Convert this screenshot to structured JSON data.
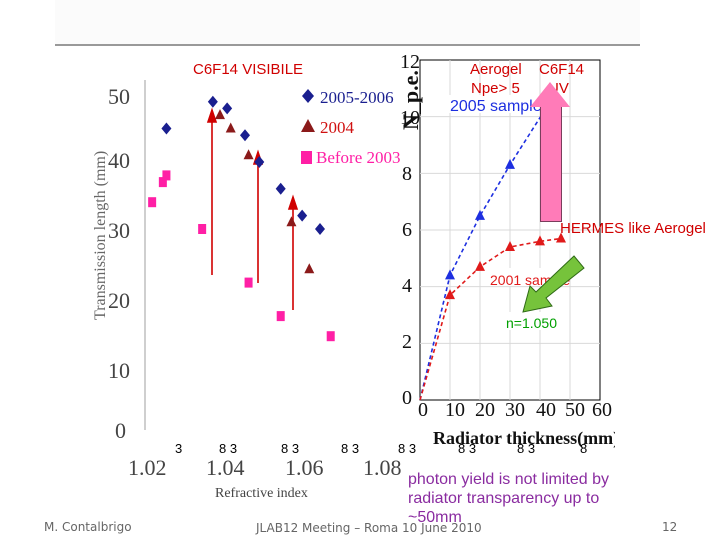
{
  "header": {
    "visible_title": "C6F14  VISIBILE",
    "aerogel_title": "Aerogel",
    "npe_label": "Npe> 5",
    "uv_title": "C6F14",
    "uv_label": "UV",
    "sample_2005": "2005 sample",
    "hermes_label": "HERMES like Aerogel"
  },
  "chart_data": [
    {
      "type": "scatter",
      "title": "",
      "xlabel": "Refractive index",
      "ylabel": "Transmission length (mm)",
      "xlim": [
        1.02,
        1.09
      ],
      "ylim": [
        0,
        50
      ],
      "yticks": [
        0,
        10,
        20,
        30,
        40,
        50
      ],
      "xticks": [
        "1.02",
        "1.04",
        "1.06",
        "1.08"
      ],
      "legend": [
        "2005-2006",
        "2004",
        "Before 2003"
      ],
      "series": [
        {
          "name": "2005-2006",
          "color": "#1a1f8f",
          "marker": "diamond",
          "points": [
            [
              1.026,
              45
            ],
            [
              1.039,
              49
            ],
            [
              1.043,
              48
            ],
            [
              1.048,
              44
            ],
            [
              1.052,
              40
            ],
            [
              1.058,
              36
            ],
            [
              1.064,
              32
            ],
            [
              1.069,
              30
            ]
          ]
        },
        {
          "name": "2004",
          "color": "#8b1a1a",
          "marker": "triangle",
          "points": [
            [
              1.041,
              47
            ],
            [
              1.044,
              45
            ],
            [
              1.049,
              41
            ],
            [
              1.061,
              31
            ],
            [
              1.066,
              24
            ]
          ]
        },
        {
          "name": "Before 2003",
          "color": "#ff1fa5",
          "marker": "square",
          "points": [
            [
              1.022,
              34
            ],
            [
              1.025,
              37
            ],
            [
              1.026,
              38
            ],
            [
              1.036,
              30
            ],
            [
              1.049,
              22
            ],
            [
              1.058,
              17
            ],
            [
              1.072,
              14
            ]
          ]
        }
      ],
      "annotations": [
        "C6F14  VISIBILE"
      ]
    },
    {
      "type": "line",
      "title": "",
      "xlabel": "Radiator thickness(mm)",
      "ylabel": "N_p.e.",
      "xlim": [
        0,
        60
      ],
      "ylim": [
        0,
        12
      ],
      "xticks": [
        0,
        10,
        20,
        30,
        40,
        50,
        60
      ],
      "yticks": [
        0,
        2,
        4,
        6,
        8,
        10,
        12
      ],
      "series": [
        {
          "name": "2005 sample",
          "color": "#1d2fe0",
          "marker": "triangle",
          "x": [
            10,
            20,
            30,
            42
          ],
          "y": [
            4.4,
            6.5,
            8.3,
            10.3
          ]
        },
        {
          "name": "2001 sample",
          "color": "#e01a1a",
          "marker": "triangle",
          "x": [
            10,
            20,
            30,
            40,
            47
          ],
          "y": [
            3.7,
            4.7,
            5.4,
            5.6,
            5.7
          ]
        }
      ],
      "annotations": [
        "n=1.050",
        "2001 sample"
      ]
    }
  ],
  "overlays": {
    "center_note": "photon yield is not limited by radiator transparency up to ~50mm",
    "label_number_3": "3",
    "tick_strip": [
      "3",
      "8  3",
      "8  3",
      "8  3",
      "8  3",
      "8  3",
      "8  3",
      "8"
    ]
  },
  "footer": {
    "author": "M. Contalbrigo",
    "meeting": "JLAB12 Meeting – Roma 10 June 2010",
    "slide_no": "12"
  }
}
